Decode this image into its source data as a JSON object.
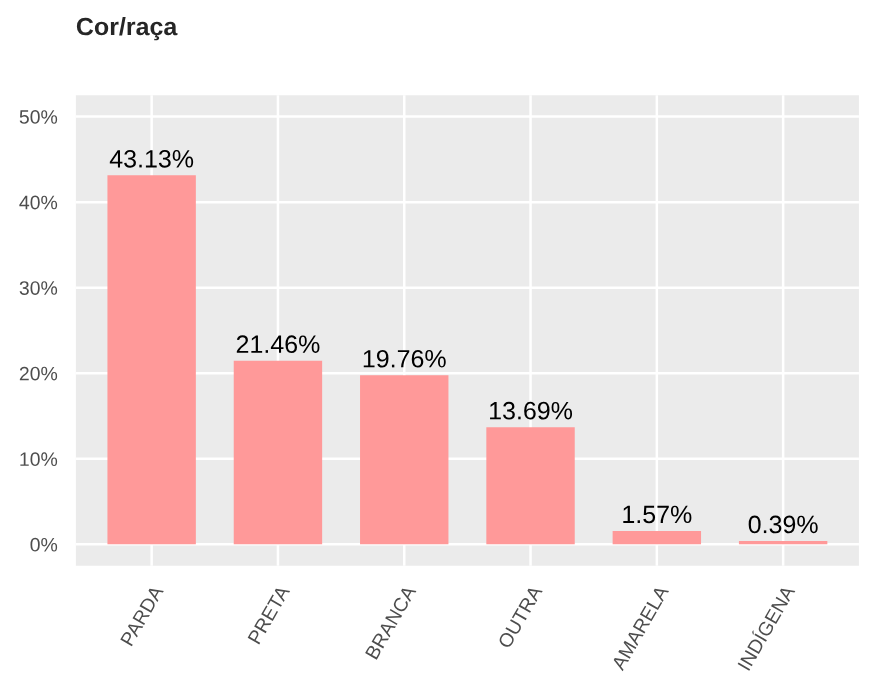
{
  "chart_data": {
    "type": "bar",
    "title": "Cor/raça",
    "categories": [
      "PARDA",
      "PRETA",
      "BRANCA",
      "OUTRA",
      "AMARELA",
      "INDÍGENA"
    ],
    "values": [
      43.13,
      21.46,
      19.76,
      13.69,
      1.57,
      0.39
    ],
    "value_labels": [
      "43.13%",
      "21.46%",
      "19.76%",
      "13.69%",
      "1.57%",
      "0.39%"
    ],
    "color": "#ff9999",
    "ylim": [
      -2.5,
      52.5
    ],
    "yticks": [
      {
        "value": 0,
        "label": "0%"
      },
      {
        "value": 10,
        "label": "10%"
      },
      {
        "value": 20,
        "label": "20%"
      },
      {
        "value": 30,
        "label": "30%"
      },
      {
        "value": 40,
        "label": "40%"
      },
      {
        "value": 50,
        "label": "50%"
      }
    ],
    "grid": true
  }
}
